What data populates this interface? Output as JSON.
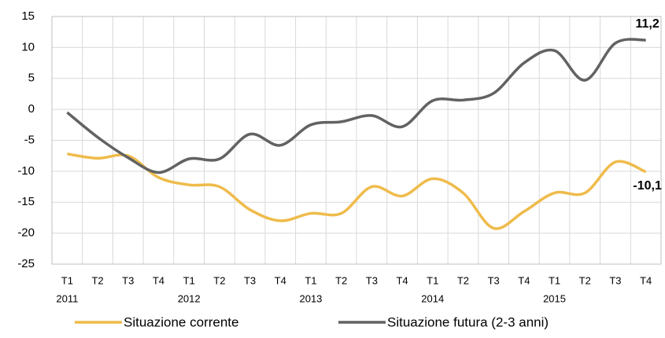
{
  "chart_data": {
    "type": "line",
    "categories": [
      "T1",
      "T2",
      "T3",
      "T4",
      "T1",
      "T2",
      "T3",
      "T4",
      "T1",
      "T2",
      "T3",
      "T4",
      "T1",
      "T2",
      "T3",
      "T4",
      "T1",
      "T2",
      "T3",
      "T4"
    ],
    "years": [
      "2011",
      "2012",
      "2013",
      "2014",
      "2015"
    ],
    "series": [
      {
        "name": "Situazione corrente",
        "color": "#efbb4b",
        "values": [
          -7.2,
          -7.9,
          -7.5,
          -11,
          -12.2,
          -12.5,
          -16.2,
          -18,
          -16.8,
          -16.8,
          -12.5,
          -14,
          -11.2,
          -13.5,
          -19.2,
          -16.5,
          -13.5,
          -13.5,
          -8.5,
          -10.1
        ],
        "value_labels": [
          null,
          null,
          null,
          null,
          null,
          null,
          null,
          null,
          null,
          null,
          null,
          null,
          null,
          null,
          null,
          null,
          null,
          null,
          null,
          "-10,1"
        ]
      },
      {
        "name": "Situazione futura (2-3 anni)",
        "color": "#626262",
        "values": [
          -0.5,
          -4.5,
          -7.8,
          -10.2,
          -8,
          -8,
          -4,
          -5.8,
          -2.5,
          -2,
          -1,
          -2.8,
          1.4,
          1.5,
          2.6,
          7.5,
          9.5,
          4.7,
          10.7,
          11.2
        ],
        "value_labels": [
          null,
          null,
          null,
          null,
          null,
          null,
          null,
          null,
          null,
          null,
          null,
          null,
          null,
          null,
          null,
          null,
          null,
          null,
          null,
          "11,2"
        ]
      }
    ],
    "ylim": [
      -25,
      15
    ],
    "yticks": [
      -25,
      -20,
      -15,
      -10,
      -5,
      0,
      5,
      10,
      15
    ],
    "grid": true,
    "legend": "bottom"
  }
}
